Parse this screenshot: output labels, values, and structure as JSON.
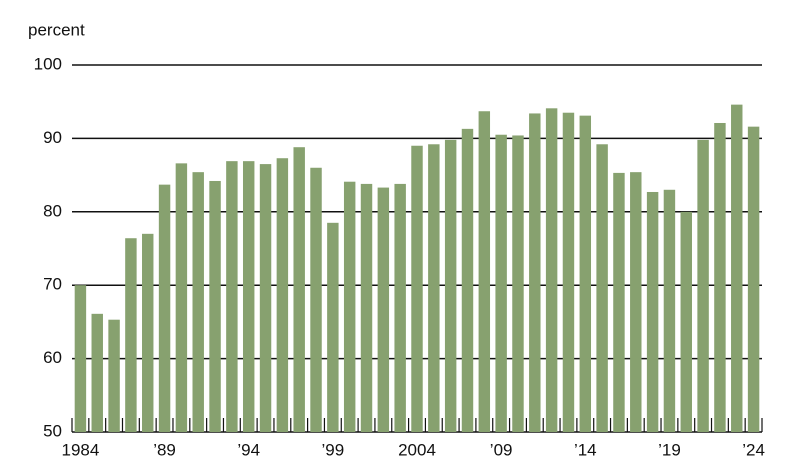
{
  "chart_data": {
    "type": "bar",
    "y_label": "percent",
    "categories": [
      "1984",
      null,
      null,
      null,
      null,
      "’89",
      null,
      null,
      null,
      null,
      "’94",
      null,
      null,
      null,
      null,
      "’99",
      null,
      null,
      null,
      null,
      "2004",
      null,
      null,
      null,
      null,
      "’09",
      null,
      null,
      null,
      null,
      "’14",
      null,
      null,
      null,
      null,
      "’19",
      null,
      null,
      null,
      null,
      "’24"
    ],
    "values": [
      70.0,
      66.1,
      65.3,
      76.4,
      77.0,
      83.7,
      86.6,
      85.4,
      84.2,
      86.9,
      86.9,
      86.5,
      87.3,
      88.8,
      86.0,
      78.5,
      84.1,
      83.8,
      83.3,
      83.8,
      89.0,
      89.2,
      89.8,
      91.3,
      93.7,
      90.5,
      90.4,
      93.4,
      94.1,
      93.5,
      93.1,
      89.2,
      85.3,
      85.4,
      82.7,
      83.0,
      80.0,
      89.8,
      92.1,
      94.6,
      91.6
    ],
    "color": "#87a16f",
    "ylim": [
      50,
      100
    ],
    "yticks": [
      50,
      60,
      70,
      80,
      90,
      100
    ],
    "grid": true
  }
}
